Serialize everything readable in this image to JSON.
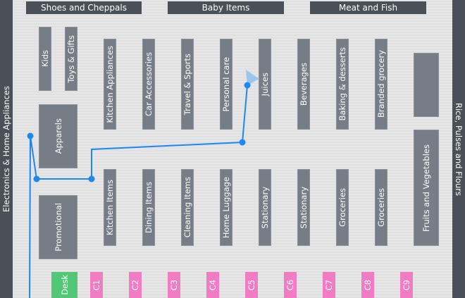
{
  "walls": {
    "left": "Electronics & Home Appliances",
    "right": "Rice, Pulses and Flours",
    "top": [
      "Shoes and Cheppals",
      "Baby Items",
      "Meat and Fish"
    ]
  },
  "sections": {
    "kids": "Kids",
    "toys": "Toys & Gifts",
    "apparels": "Apparels",
    "promotional": "Promotional",
    "fruits": "Fruits and Vegetables",
    "unlabeled": ""
  },
  "top_aisles": [
    "Kitchen Appliances",
    "Car Accessories",
    "Travel & Sports",
    "Personal care",
    "Juices",
    "Beverages",
    "Baking & desserts",
    "Branded grocery"
  ],
  "bottom_aisles": [
    "Kitchen Items",
    "Dining Items",
    "Cleaning Items",
    "Home Luggage",
    "Stationary",
    "Stationary",
    "Groceries",
    "Groceries"
  ],
  "checkout": {
    "desk": "Desk",
    "counters": [
      "C1",
      "C2",
      "C3",
      "C4",
      "C5",
      "C6",
      "C7",
      "C8",
      "C9"
    ]
  },
  "colors": {
    "route": "#1e88f0",
    "counter": "#f27cc4",
    "desk": "#52c776",
    "shelf": "#767d86",
    "wall": "#4a5058"
  },
  "route": {
    "current_location_icon": "location-heading-cone"
  }
}
